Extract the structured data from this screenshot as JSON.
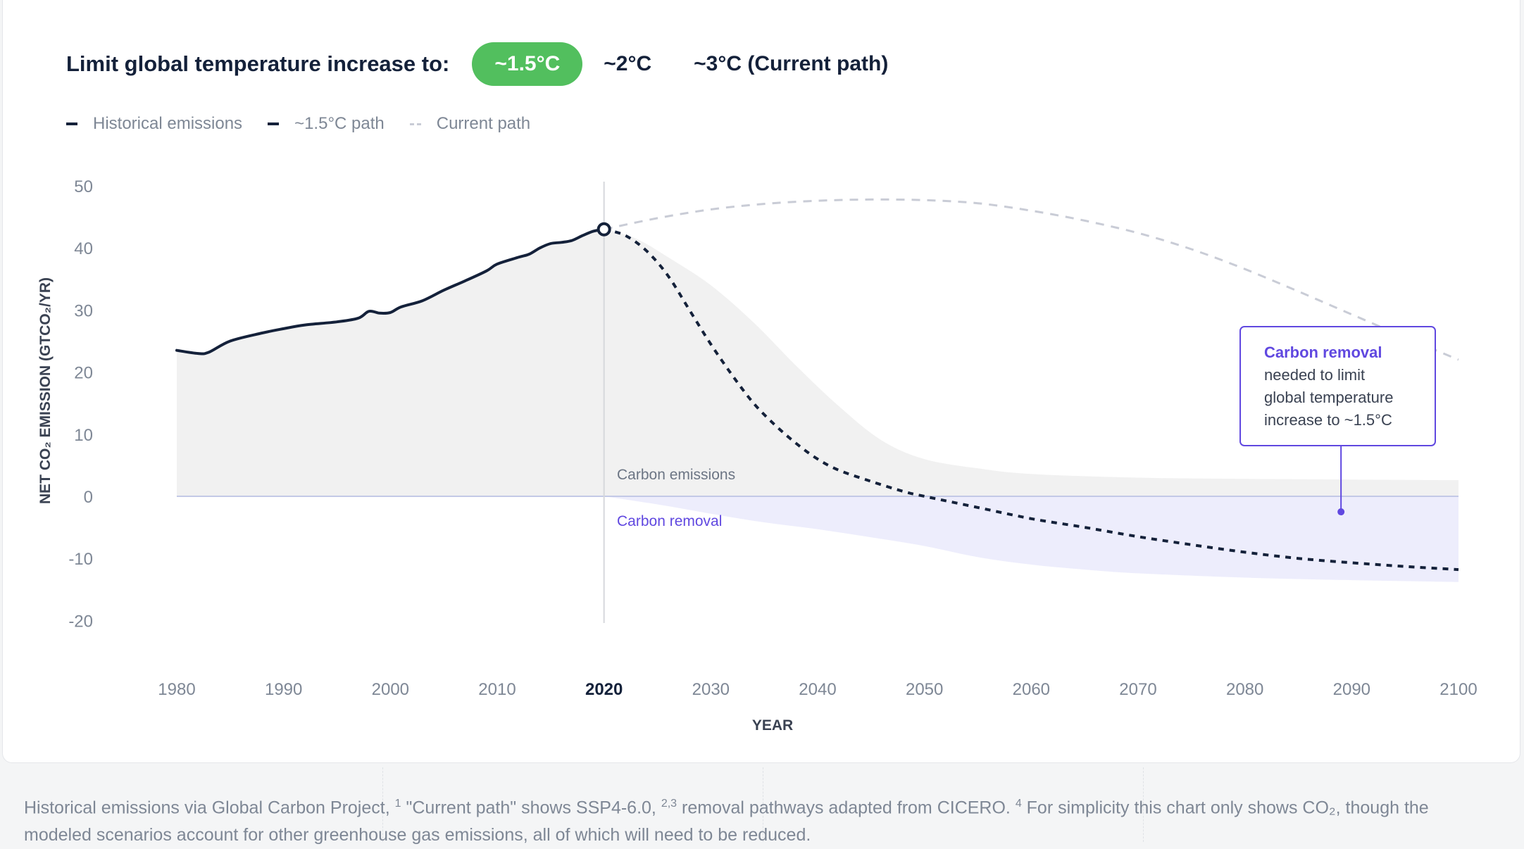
{
  "header": {
    "title": "Limit global temperature increase to:",
    "options": [
      "~1.5°C",
      "~2°C",
      "~3°C (Current path)"
    ],
    "selected": "~1.5°C"
  },
  "legend": {
    "historical": "Historical emissions",
    "path15": "~1.5°C path",
    "current": "Current path"
  },
  "colors": {
    "accent_green": "#52bf5e",
    "dark_navy": "#14213a",
    "removal_purple": "#6048e0",
    "current_path_gray": "#c9ccd6",
    "emissions_fill": "#f1f1f1",
    "removal_fill": "#ededfc"
  },
  "chart_data": {
    "type": "line",
    "ylabel": "NET CO₂ EMISSION (GTCO₂/YR)",
    "xlabel": "YEAR",
    "ylim": [
      -20,
      50
    ],
    "xlim": [
      1980,
      2100
    ],
    "y_ticks": [
      50,
      40,
      30,
      20,
      10,
      0,
      -10,
      -20
    ],
    "x_ticks": [
      1980,
      1990,
      2000,
      2010,
      2020,
      2030,
      2040,
      2050,
      2060,
      2070,
      2080,
      2090,
      2100
    ],
    "highlight_year": 2020,
    "series": [
      {
        "name": "Historical emissions",
        "style": "solid",
        "points": [
          [
            1980,
            23.5
          ],
          [
            1982,
            23.0
          ],
          [
            1983,
            23.2
          ],
          [
            1985,
            25.0
          ],
          [
            1988,
            26.3
          ],
          [
            1990,
            27.0
          ],
          [
            1992,
            27.6
          ],
          [
            1995,
            28.1
          ],
          [
            1997,
            28.7
          ],
          [
            1998,
            29.8
          ],
          [
            1999,
            29.5
          ],
          [
            2000,
            29.6
          ],
          [
            2001,
            30.5
          ],
          [
            2003,
            31.5
          ],
          [
            2005,
            33.2
          ],
          [
            2007,
            34.7
          ],
          [
            2009,
            36.3
          ],
          [
            2010,
            37.4
          ],
          [
            2012,
            38.5
          ],
          [
            2013,
            39.0
          ],
          [
            2014,
            40.0
          ],
          [
            2015,
            40.7
          ],
          [
            2016,
            40.9
          ],
          [
            2017,
            41.2
          ],
          [
            2018,
            42.0
          ],
          [
            2019,
            42.7
          ],
          [
            2020,
            43.0
          ]
        ]
      },
      {
        "name": "~1.5°C path",
        "style": "dashed",
        "points": [
          [
            2020,
            43.0
          ],
          [
            2022,
            42.0
          ],
          [
            2024,
            39.5
          ],
          [
            2026,
            35.5
          ],
          [
            2028,
            30.0
          ],
          [
            2030,
            24.5
          ],
          [
            2032,
            19.5
          ],
          [
            2034,
            15.0
          ],
          [
            2036,
            11.5
          ],
          [
            2038,
            8.5
          ],
          [
            2040,
            6.0
          ],
          [
            2042,
            4.2
          ],
          [
            2045,
            2.4
          ],
          [
            2048,
            0.8
          ],
          [
            2050,
            0.0
          ],
          [
            2055,
            -1.8
          ],
          [
            2060,
            -3.6
          ],
          [
            2065,
            -5.0
          ],
          [
            2070,
            -6.5
          ],
          [
            2075,
            -7.8
          ],
          [
            2080,
            -9.0
          ],
          [
            2085,
            -10.0
          ],
          [
            2090,
            -10.7
          ],
          [
            2095,
            -11.3
          ],
          [
            2100,
            -11.8
          ]
        ]
      },
      {
        "name": "Current path",
        "style": "dashed-light",
        "points": [
          [
            2020,
            43.0
          ],
          [
            2025,
            44.8
          ],
          [
            2030,
            46.2
          ],
          [
            2035,
            47.1
          ],
          [
            2040,
            47.6
          ],
          [
            2045,
            47.8
          ],
          [
            2050,
            47.7
          ],
          [
            2055,
            47.2
          ],
          [
            2060,
            46.0
          ],
          [
            2065,
            44.4
          ],
          [
            2070,
            42.4
          ],
          [
            2075,
            39.8
          ],
          [
            2080,
            36.6
          ],
          [
            2085,
            33.0
          ],
          [
            2090,
            29.3
          ],
          [
            2095,
            25.6
          ],
          [
            2100,
            22.0
          ]
        ]
      }
    ],
    "areas": [
      {
        "name": "Carbon emissions",
        "upper": [
          [
            1980,
            23.5
          ],
          [
            1982,
            23.0
          ],
          [
            1983,
            23.2
          ],
          [
            1985,
            25.0
          ],
          [
            1988,
            26.3
          ],
          [
            1990,
            27.0
          ],
          [
            1992,
            27.6
          ],
          [
            1995,
            28.1
          ],
          [
            1997,
            28.7
          ],
          [
            1998,
            29.8
          ],
          [
            1999,
            29.5
          ],
          [
            2000,
            29.6
          ],
          [
            2001,
            30.5
          ],
          [
            2003,
            31.5
          ],
          [
            2005,
            33.2
          ],
          [
            2007,
            34.7
          ],
          [
            2009,
            36.3
          ],
          [
            2010,
            37.4
          ],
          [
            2012,
            38.5
          ],
          [
            2013,
            39.0
          ],
          [
            2014,
            40.0
          ],
          [
            2015,
            40.7
          ],
          [
            2016,
            40.9
          ],
          [
            2017,
            41.2
          ],
          [
            2018,
            42.0
          ],
          [
            2019,
            42.7
          ],
          [
            2020,
            43.0
          ],
          [
            2023,
            41.5
          ],
          [
            2026,
            38.5
          ],
          [
            2030,
            34.0
          ],
          [
            2034,
            28.0
          ],
          [
            2038,
            21.0
          ],
          [
            2042,
            14.5
          ],
          [
            2046,
            9.0
          ],
          [
            2050,
            6.0
          ],
          [
            2055,
            4.5
          ],
          [
            2060,
            3.6
          ],
          [
            2070,
            3.0
          ],
          [
            2080,
            2.8
          ],
          [
            2090,
            2.7
          ],
          [
            2100,
            2.6
          ]
        ],
        "lower": 0
      },
      {
        "name": "Carbon removal",
        "lower": [
          [
            2020,
            0.0
          ],
          [
            2025,
            -1.3
          ],
          [
            2030,
            -2.8
          ],
          [
            2035,
            -4.2
          ],
          [
            2040,
            -5.3
          ],
          [
            2045,
            -6.6
          ],
          [
            2050,
            -8.0
          ],
          [
            2055,
            -9.8
          ],
          [
            2060,
            -11.0
          ],
          [
            2065,
            -11.8
          ],
          [
            2070,
            -12.4
          ],
          [
            2080,
            -13.1
          ],
          [
            2090,
            -13.5
          ],
          [
            2100,
            -13.8
          ]
        ],
        "upper": 0
      }
    ],
    "annotations": {
      "emissions_label": "Carbon emissions",
      "removal_label": "Carbon removal",
      "callout_bold": "Carbon removal",
      "callout_rest": "needed to limit global temperature increase to ~1.5°C",
      "callout_lines": [
        "needed to limit",
        "global temperature",
        "increase to ~1.5°C"
      ],
      "callout_point": [
        2089,
        -2.5
      ]
    }
  },
  "footer": {
    "text1": "Historical emissions via Global Carbon Project, ",
    "sup1": "1",
    "text2": " \"Current path\" shows SSP4-6.0, ",
    "sup2": "2,3",
    "text3": " removal pathways adapted from CICERO. ",
    "sup3": "4",
    "text4": " For simplicity this chart only shows CO₂, though the modeled scenarios account for other greenhouse gas emissions, all of which will need to be reduced."
  }
}
